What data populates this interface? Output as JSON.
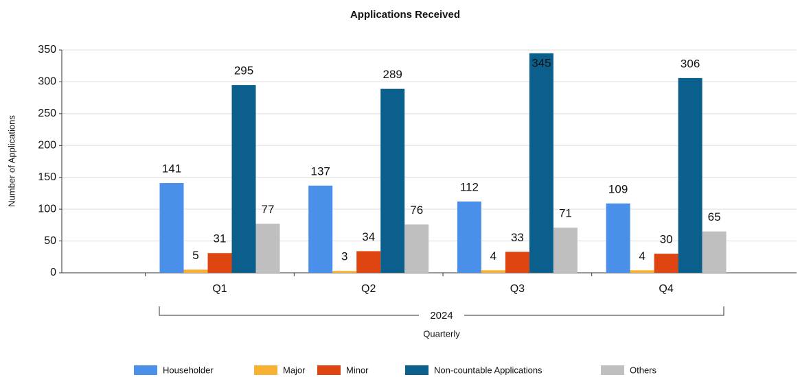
{
  "chart_data": {
    "type": "bar",
    "title": "Applications Received",
    "ylabel": "Number of Applications",
    "xlabel": "Quarterly",
    "category_group": "2024",
    "categories": [
      "Q1",
      "Q2",
      "Q3",
      "Q4"
    ],
    "series": [
      {
        "name": "Householder",
        "color": "#4a8fea",
        "values": [
          141,
          137,
          112,
          109
        ]
      },
      {
        "name": "Major",
        "color": "#f8b133",
        "values": [
          5,
          3,
          4,
          4
        ]
      },
      {
        "name": "Minor",
        "color": "#df4510",
        "values": [
          31,
          34,
          33,
          30
        ]
      },
      {
        "name": "Non-countable Applications",
        "color": "#0b5f8d",
        "values": [
          295,
          289,
          345,
          306
        ]
      },
      {
        "name": "Others",
        "color": "#bfbfbf",
        "values": [
          77,
          76,
          71,
          65
        ]
      }
    ],
    "ylim": [
      0,
      350
    ],
    "yticks": [
      0,
      50,
      100,
      150,
      200,
      250,
      300,
      350
    ],
    "grid": true,
    "legend": "bottom"
  }
}
